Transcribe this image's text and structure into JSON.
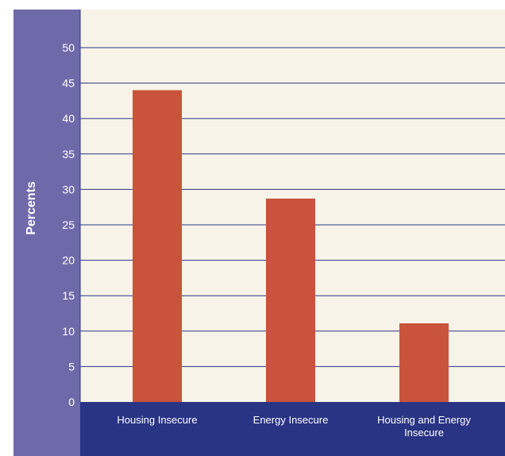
{
  "colors": {
    "plot_background": "#f7f3e8",
    "left_panel": "#6e6aaa",
    "bottom_panel": "#2a3485",
    "gridline": "#2a3485",
    "bar": "#c9533b",
    "text": "#ffffff"
  },
  "chart_data": {
    "type": "bar",
    "title": "",
    "xlabel": "",
    "ylabel": "Percents",
    "ylim": [
      0,
      50
    ],
    "yticks": [
      0,
      5,
      10,
      15,
      20,
      25,
      30,
      35,
      40,
      45,
      50
    ],
    "grid": true,
    "categories": [
      [
        "Housing Insecure"
      ],
      [
        "Energy Insecure"
      ],
      [
        "Housing and Energy",
        "Insecure"
      ]
    ],
    "values": [
      44,
      28.7,
      11.1
    ]
  }
}
